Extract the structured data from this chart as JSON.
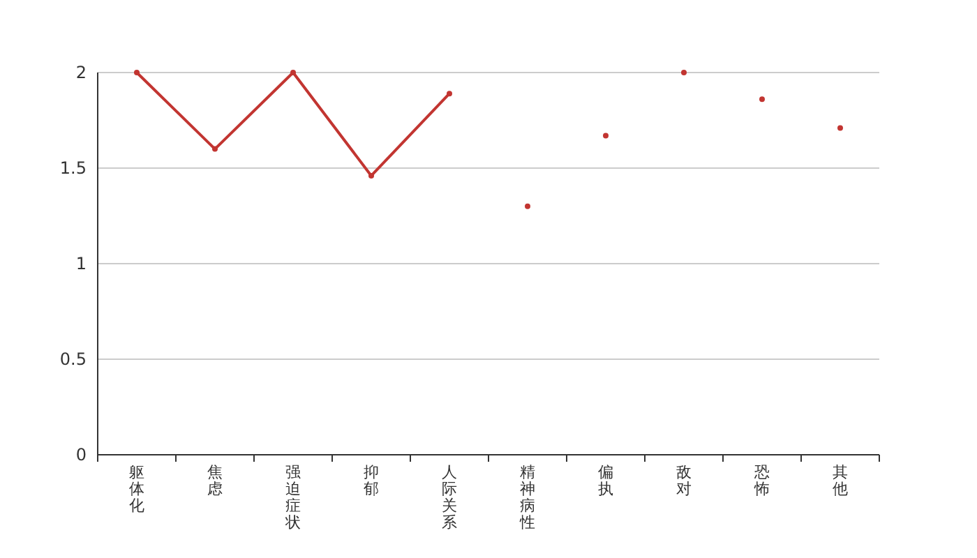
{
  "chart_data": {
    "type": "line",
    "categories": [
      "躯体化",
      "焦虑",
      "强迫症状",
      "抑郁",
      "人际关系",
      "精神病性",
      "偏执",
      "敌对",
      "恐怖",
      "其他"
    ],
    "series": [
      {
        "color": "#c23531",
        "values": [
          2,
          1.6,
          2,
          1.46,
          1.89,
          null,
          null,
          null,
          null,
          null
        ]
      },
      {
        "type": "scatter",
        "color": "#c23531",
        "values": [
          null,
          null,
          null,
          null,
          null,
          1.3,
          1.67,
          2,
          1.86,
          1.71
        ]
      }
    ],
    "ylim": [
      0,
      2
    ],
    "yticks": [
      0,
      0.5,
      1,
      1.5,
      2
    ],
    "grid": "y",
    "marker": "circle",
    "line_style": "solid"
  }
}
